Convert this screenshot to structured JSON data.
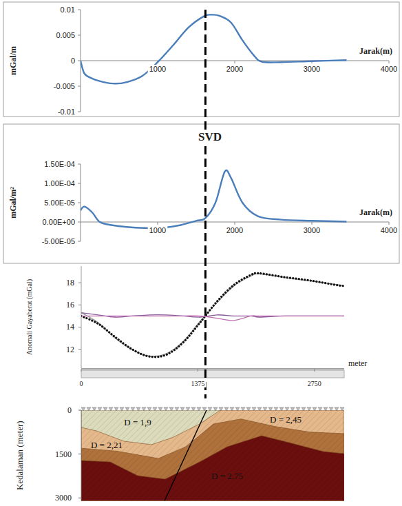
{
  "chart_data": [
    {
      "type": "line",
      "y_label": "mGal/m",
      "x_label": "Jarak(m)",
      "color": "#4a7ebb",
      "line_style": "solid",
      "x": [
        0,
        50,
        150,
        300,
        450,
        600,
        800,
        1000,
        1200,
        1400,
        1600,
        1700,
        1800,
        1950,
        2100,
        2250,
        2350,
        2600,
        3000,
        3450
      ],
      "values": [
        0,
        -0.0025,
        -0.0035,
        -0.0042,
        -0.0045,
        -0.0042,
        -0.003,
        -0.0003,
        0.003,
        0.0065,
        0.0087,
        0.009,
        0.0088,
        0.0075,
        0.004,
        0.001,
        -0.0002,
        -0.0003,
        -0.0001,
        0.0001
      ],
      "xlim": [
        0,
        4000
      ],
      "ylim": [
        -0.01,
        0.01
      ],
      "xticks": [
        1000,
        2000,
        3000,
        4000
      ],
      "yticks": [
        -0.01,
        -0.005,
        0,
        0.005,
        0.01
      ],
      "vlines": [
        1620
      ]
    },
    {
      "type": "line",
      "title": "SVD",
      "y_label": "mGal/m²",
      "x_label": "Jarak(m)",
      "color": "#4a7ebb",
      "line_style": "solid",
      "x": [
        0,
        50,
        150,
        250,
        400,
        600,
        900,
        1100,
        1300,
        1500,
        1620,
        1750,
        1870,
        1950,
        2100,
        2300,
        2600,
        3000,
        3450
      ],
      "values": [
        3e-05,
        4e-05,
        2.5e-05,
        0,
        -8e-06,
        -1.3e-05,
        -1.6e-05,
        -1.4e-05,
        -8e-06,
        3e-06,
        1e-05,
        5e-05,
        0.00013,
        0.000115,
        5e-05,
        1.5e-05,
        6e-06,
        3e-06,
        1e-06
      ],
      "xlim": [
        0,
        4000
      ],
      "ylim": [
        -5e-05,
        0.00015
      ],
      "xticks": [
        1000,
        2000,
        3000,
        4000
      ],
      "yticks": [
        {
          "value": -5e-05,
          "label": "-5.00E-05"
        },
        {
          "value": 0,
          "label": "0.00E+00"
        },
        {
          "value": 5e-05,
          "label": "5.00E-05"
        },
        {
          "value": 0.0001,
          "label": "1.00E-04"
        },
        {
          "value": 0.00015,
          "label": "1.50E-04"
        }
      ]
    },
    {
      "type": "line",
      "y_label": "Anomali Gayaberat (mGal)",
      "x_label": "meter",
      "x": [
        0,
        200,
        400,
        600,
        800,
        1000,
        1200,
        1400,
        1600,
        1800,
        2000,
        2100,
        2400,
        2700,
        3000,
        3100
      ],
      "series": [
        {
          "color": "#9a9a9a",
          "line_style": "solid",
          "values": [
            15.3,
            14.4,
            13.0,
            11.95,
            11.4,
            11.6,
            12.7,
            14.5,
            16.2,
            17.7,
            18.6,
            18.8,
            18.45,
            18.15,
            17.85,
            17.75
          ]
        },
        {
          "color": "#111111",
          "line_style": "dotted",
          "marker": "dot",
          "values": [
            15.0,
            14.3,
            13.1,
            12.0,
            11.35,
            11.5,
            12.6,
            14.4,
            16.3,
            17.8,
            18.7,
            18.85,
            18.5,
            18.2,
            17.8,
            17.7
          ]
        },
        {
          "color": "#8a5a9a",
          "line_style": "solid",
          "values": [
            15.3,
            15.1,
            14.9,
            15.0,
            15.1,
            15.1,
            15.0,
            14.9,
            15.1,
            15.0,
            15.0,
            14.9,
            15.0,
            15.0,
            15.0,
            15.0
          ]
        },
        {
          "color": "#c070b0",
          "line_style": "solid",
          "values": [
            15.0,
            15.0,
            15.0,
            15.0,
            15.0,
            15.0,
            15.0,
            15.0,
            14.8,
            14.6,
            15.0,
            15.0,
            15.0,
            15.0,
            15.0,
            15.0
          ]
        }
      ],
      "xlim": [
        0,
        3100
      ],
      "ylim": [
        10.3,
        19.5
      ],
      "xticks": [
        0,
        1375,
        2750
      ],
      "yticks": [
        12,
        14,
        16,
        18
      ]
    },
    {
      "type": "section",
      "y_label": "Kedalaman (meter)",
      "xlim": [
        0,
        3100
      ],
      "ylim": [
        0,
        3100
      ],
      "yticks": [
        0,
        1500,
        3000
      ],
      "tick_labels": "y",
      "layers": [
        {
          "label": "D = 2,21",
          "color": "#e6b98c",
          "x": [
            0,
            1477,
            982,
            0
          ],
          "depth": [
            0,
            0,
            3100,
            3100
          ],
          "label_at": [
            300,
            1170
          ]
        },
        {
          "label": "D = 2,45",
          "color": "#e6b98c",
          "x": [
            1477,
            3100,
            3100,
            982
          ],
          "depth": [
            0,
            0,
            3100,
            3100
          ],
          "label_at": [
            2411,
            300
          ]
        },
        {
          "color": "#b0723c",
          "x": [
            0,
            422,
            909,
            1234,
            1558,
            1883,
            2289,
            2695,
            3100,
            3100,
            0
          ],
          "depth": [
            1300,
            1400,
            1650,
            1250,
            472,
            300,
            560,
            750,
            800,
            3100,
            3100
          ]
        },
        {
          "label": "D = 2.75",
          "color": "#6b0e0e",
          "x": [
            0,
            341,
            666,
            990,
            1396,
            1721,
            2127,
            2451,
            2857,
            3100,
            3100,
            0
          ],
          "depth": [
            1722,
            1769,
            2241,
            2358,
            1769,
            1250,
            873,
            1108,
            1415,
            1486,
            3100,
            3100
          ],
          "label_at": [
            1721,
            2241
          ]
        },
        {
          "label": "D = 1,9",
          "color": "#dcdcbc",
          "x": [
            0,
            1640,
            1396,
            1071,
            828,
            503,
            179,
            0
          ],
          "depth": [
            0,
            0,
            472,
            943,
            1179,
            1061,
            708,
            590
          ],
          "label_at": [
            666,
            401
          ]
        }
      ],
      "fault": {
        "x": [
          1477,
          982
        ],
        "depth": [
          0,
          3100
        ]
      }
    }
  ]
}
